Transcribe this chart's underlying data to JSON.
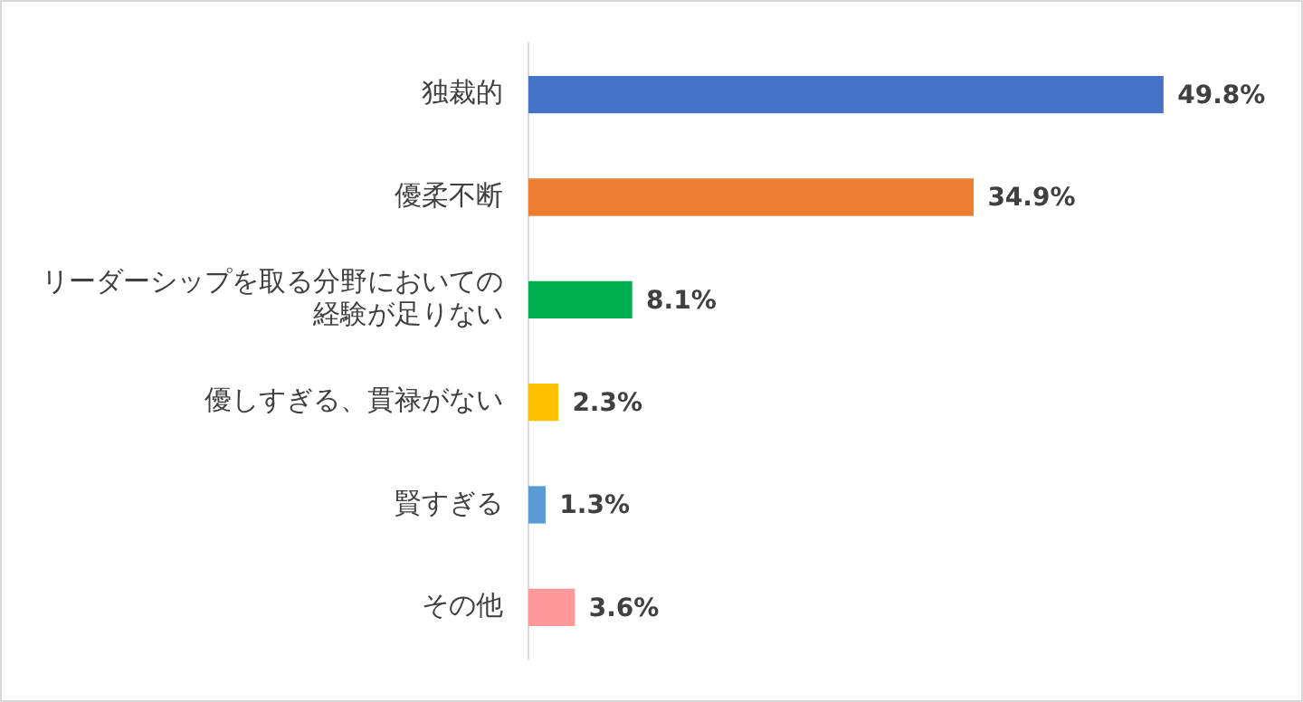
{
  "chart_data": {
    "type": "bar",
    "orientation": "horizontal",
    "categories": [
      "独裁的",
      "優柔不断",
      "リーダーシップを取る分野においての経験が足りない",
      "優しすぎる、貫禄がない",
      "賢すぎる",
      "その他"
    ],
    "values": [
      49.8,
      34.9,
      8.1,
      2.3,
      1.3,
      3.6
    ],
    "colors": [
      "#4472c4",
      "#ed7d31",
      "#00b050",
      "#ffc000",
      "#5b9bd5",
      "#ff9999"
    ],
    "value_labels": [
      "49.8%",
      "34.9%",
      "8.1%",
      "2.3%",
      "1.3%",
      "3.6%"
    ],
    "tick_labels": "y"
  }
}
